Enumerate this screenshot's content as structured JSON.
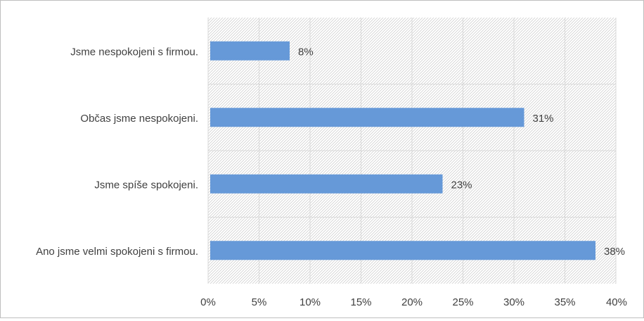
{
  "chart_data": {
    "type": "bar",
    "orientation": "horizontal",
    "title": "",
    "xlabel": "",
    "ylabel": "",
    "categories": [
      "Jsme nespokojeni s firmou.",
      "Občas jsme nespokojeni.",
      "Jsme spíše spokojeni.",
      "Ano jsme velmi spokojeni s firmou."
    ],
    "values": [
      8,
      31,
      23,
      38
    ],
    "value_labels": [
      "8%",
      "31%",
      "23%",
      "38%"
    ],
    "xlim": [
      0,
      40
    ],
    "xticks": [
      0,
      5,
      10,
      15,
      20,
      25,
      30,
      35,
      40
    ],
    "xtick_labels": [
      "0%",
      "5%",
      "10%",
      "15%",
      "20%",
      "25%",
      "30%",
      "35%",
      "40%"
    ],
    "grid": true,
    "legend": "none",
    "colors": {
      "bar": "#6699d8",
      "grid": "#d9d9d9",
      "hatch": "#c8c8c8",
      "text": "#404040"
    }
  }
}
